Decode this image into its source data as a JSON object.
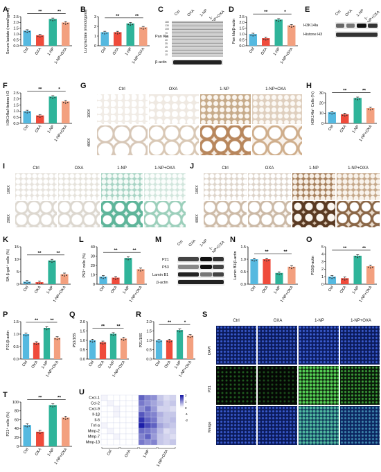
{
  "colors": {
    "ctrl": "#55b9e0",
    "oxa": "#ef4b3b",
    "np": "#2fb49a",
    "npoxa": "#f3a07f",
    "hm_low": "#ffffff",
    "hm_high": "#1c1ea8"
  },
  "groups": [
    "Ctrl",
    "OXA",
    "1-NP",
    "1-NP+OXA"
  ],
  "labels": {
    "A": "A",
    "B": "B",
    "C": "C",
    "D": "D",
    "E": "E",
    "F": "F",
    "G": "G",
    "H": "H",
    "I": "I",
    "J": "J",
    "K": "K",
    "L": "L",
    "M": "M",
    "N": "N",
    "O": "O",
    "P": "P",
    "Q": "Q",
    "R": "R",
    "S": "S",
    "T": "T",
    "U": "U"
  },
  "sig": {
    "ss": "**",
    "s": "*"
  },
  "C": {
    "pan_kla": "Pan Kla",
    "actin": "β-actin",
    "kda": [
      "180",
      "130",
      "100",
      "70",
      "55",
      "40",
      "35",
      "25",
      "15",
      "10"
    ]
  },
  "E": {
    "h3k14la": "H3K14la",
    "h3": "Histone H3"
  },
  "G": {
    "mag": [
      "100X",
      "400X"
    ]
  },
  "I": {
    "mag": [
      "100X",
      "200X"
    ]
  },
  "J": {
    "mag": [
      "100X",
      "400X"
    ]
  },
  "M": {
    "rows": [
      "P21",
      "P53",
      "Lamin B1",
      "β-actin"
    ]
  },
  "S": {
    "rows": [
      "DAPI",
      "P21",
      "Merge"
    ]
  },
  "U": {
    "genes": [
      "Cxcl-1",
      "Ccl-2",
      "Cxcl-9",
      "Il-1β",
      "Il-6",
      "Tnf-α",
      "Mmp-2",
      "Mmp-7",
      "Mmp-13"
    ],
    "groups": [
      "Ctrl",
      "OXA",
      "1-NP",
      "1-NP+OXA"
    ],
    "scale": [
      "2",
      "1",
      "0",
      "-1",
      "-2"
    ]
  },
  "chart_data": [
    {
      "panel": "A",
      "type": "bar",
      "categories": [
        "Ctrl",
        "OXA",
        "1-NP",
        "1-NP+OXA"
      ],
      "values": [
        1.3,
        0.9,
        2.3,
        2.0
      ],
      "ylabel": "Serum lactate (mmol/gprot)",
      "ylim": [
        0,
        2.5
      ],
      "yticks": [
        "0.0",
        "0.5",
        "1.0",
        "1.5",
        "2.0",
        "2.5"
      ],
      "sig": [
        {
          "a": 0,
          "b": 2,
          "t": "**"
        },
        {
          "a": 2,
          "b": 3,
          "t": "**"
        }
      ]
    },
    {
      "panel": "B",
      "type": "bar",
      "categories": [
        "Ctrl",
        "OXA",
        "1-NP",
        "1-NP+OXA"
      ],
      "values": [
        1.4,
        1.4,
        2.3,
        1.9
      ],
      "ylabel": "Lung lactate (mmol/gprot)",
      "ylim": [
        0,
        3
      ],
      "yticks": [
        "0",
        "1",
        "2",
        "3"
      ],
      "sig": [
        {
          "a": 0,
          "b": 2,
          "t": "**"
        },
        {
          "a": 2,
          "b": 3,
          "t": "**"
        }
      ]
    },
    {
      "panel": "D",
      "type": "bar",
      "categories": [
        "Ctrl",
        "OXA",
        "1-NP",
        "1-NP+OXA"
      ],
      "values": [
        1.0,
        0.65,
        2.25,
        1.75
      ],
      "ylabel": "Pan kla/β-actin",
      "ylim": [
        0,
        2.5
      ],
      "yticks": [
        "0.0",
        "0.5",
        "1.0",
        "1.5",
        "2.0",
        "2.5"
      ],
      "sig": [
        {
          "a": 0,
          "b": 2,
          "t": "**"
        },
        {
          "a": 2,
          "b": 3,
          "t": "*"
        }
      ]
    },
    {
      "panel": "F",
      "type": "bar",
      "categories": [
        "Ctrl",
        "OXA",
        "1-NP",
        "1-NP+OXA"
      ],
      "values": [
        1.0,
        0.65,
        2.2,
        1.8
      ],
      "ylabel": "H3K14la/Histone H3",
      "ylim": [
        0,
        2.5
      ],
      "yticks": [
        "0.0",
        "0.5",
        "1.0",
        "1.5",
        "2.0",
        "2.5"
      ],
      "sig": [
        {
          "a": 0,
          "b": 2,
          "t": "**"
        },
        {
          "a": 2,
          "b": 3,
          "t": "*"
        }
      ]
    },
    {
      "panel": "H",
      "type": "bar",
      "categories": [
        "Ctrl",
        "OXA",
        "1-NP",
        "1-NP+OXA"
      ],
      "values": [
        11,
        9,
        25,
        15
      ],
      "ylabel": "H3K14la⁺ Cells (%)",
      "ylim": [
        0,
        30
      ],
      "yticks": [
        "0",
        "10",
        "20",
        "30"
      ],
      "sig": [
        {
          "a": 0,
          "b": 2,
          "t": "**"
        },
        {
          "a": 2,
          "b": 3,
          "t": "**"
        }
      ]
    },
    {
      "panel": "K",
      "type": "bar",
      "categories": [
        "Ctrl",
        "OXA",
        "1-NP",
        "1-NP+OXA"
      ],
      "values": [
        1.0,
        0.8,
        9.5,
        4.0
      ],
      "ylabel": "SA-β-gal⁺ cells (%)",
      "ylim": [
        0,
        15
      ],
      "yticks": [
        "0",
        "5",
        "10",
        "15"
      ],
      "sig": [
        {
          "a": 0,
          "b": 2,
          "t": "**"
        },
        {
          "a": 2,
          "b": 3,
          "t": "**"
        }
      ]
    },
    {
      "panel": "L",
      "type": "bar",
      "categories": [
        "Ctrl",
        "OXA",
        "1-NP",
        "1-NP+OXA"
      ],
      "values": [
        8,
        7,
        28,
        16
      ],
      "ylabel": "P53⁺ cells (%)",
      "ylim": [
        0,
        40
      ],
      "yticks": [
        "0",
        "10",
        "20",
        "30",
        "40"
      ],
      "sig": [
        {
          "a": 0,
          "b": 2,
          "t": "**"
        },
        {
          "a": 2,
          "b": 3,
          "t": "**"
        }
      ]
    },
    {
      "panel": "N",
      "type": "bar",
      "categories": [
        "Ctrl",
        "OXA",
        "1-NP",
        "1-NP+OXA"
      ],
      "values": [
        1.0,
        1.0,
        0.45,
        0.7
      ],
      "ylabel": "Lamin B1/β-actin",
      "ylim": [
        0,
        1.5
      ],
      "yticks": [
        "0.0",
        "0.5",
        "1.0",
        "1.5"
      ],
      "sig": [
        {
          "a": 0,
          "b": 2,
          "t": "**"
        },
        {
          "a": 2,
          "b": 3,
          "t": "**"
        }
      ]
    },
    {
      "panel": "O",
      "type": "bar",
      "categories": [
        "Ctrl",
        "OXA",
        "1-NP",
        "1-NP+OXA"
      ],
      "values": [
        1.0,
        0.8,
        3.8,
        2.4
      ],
      "ylabel": "P53/β-actin",
      "ylim": [
        0,
        5
      ],
      "yticks": [
        "0",
        "1",
        "2",
        "3",
        "4",
        "5"
      ],
      "sig": [
        {
          "a": 0,
          "b": 2,
          "t": "**"
        },
        {
          "a": 2,
          "b": 3,
          "t": "**"
        }
      ]
    },
    {
      "panel": "P",
      "type": "bar",
      "categories": [
        "Ctrl",
        "OXA",
        "1-NP",
        "1-NP+OXA"
      ],
      "values": [
        1.0,
        0.65,
        1.25,
        0.85
      ],
      "ylabel": "P21/β-actin",
      "ylim": [
        0,
        1.5
      ],
      "yticks": [
        "0.0",
        "0.5",
        "1.0",
        "1.5"
      ],
      "sig": [
        {
          "a": 0,
          "b": 2,
          "t": "**"
        },
        {
          "a": 2,
          "b": 3,
          "t": "**"
        }
      ]
    },
    {
      "panel": "Q",
      "type": "bar",
      "categories": [
        "Ctrl",
        "OXA",
        "1-NP",
        "1-NP+OXA"
      ],
      "values": [
        1.0,
        0.9,
        1.35,
        1.1
      ],
      "ylabel": "P53/18S",
      "ylim": [
        0,
        2
      ],
      "yticks": [
        "0.0",
        "0.5",
        "1.0",
        "1.5",
        "2.0"
      ],
      "sig": [
        {
          "a": 0,
          "b": 2,
          "t": "**"
        },
        {
          "a": 2,
          "b": 3,
          "t": "**"
        }
      ]
    },
    {
      "panel": "R",
      "type": "bar",
      "categories": [
        "Ctrl",
        "OXA",
        "1-NP",
        "1-NP+OXA"
      ],
      "values": [
        1.0,
        1.0,
        1.55,
        1.25
      ],
      "ylabel": "P21/18S",
      "ylim": [
        0,
        2
      ],
      "yticks": [
        "0.0",
        "0.5",
        "1.0",
        "1.5",
        "2.0"
      ],
      "sig": [
        {
          "a": 0,
          "b": 2,
          "t": "**"
        },
        {
          "a": 2,
          "b": 3,
          "t": "*"
        }
      ]
    },
    {
      "panel": "T",
      "type": "bar",
      "categories": [
        "Ctrl",
        "OXA",
        "1-NP",
        "1-NP+OXA"
      ],
      "values": [
        48,
        33,
        93,
        65
      ],
      "ylabel": "P21⁺ cells (%)",
      "ylim": [
        0,
        100
      ],
      "yticks": [
        "0",
        "20",
        "40",
        "60",
        "80",
        "100"
      ],
      "sig": [
        {
          "a": 0,
          "b": 2,
          "t": "**"
        },
        {
          "a": 2,
          "b": 3,
          "t": "**"
        }
      ]
    },
    {
      "panel": "U",
      "type": "heatmap",
      "rows": [
        "Cxcl-1",
        "Ccl-2",
        "Cxcl-9",
        "Il-1β",
        "Il-6",
        "Tnf-α",
        "Mmp-2",
        "Mmp-7",
        "Mmp-13"
      ],
      "columns": 12,
      "values": [
        [
          0.1,
          -0.1,
          0.0,
          -0.2,
          -0.3,
          -0.2,
          1.4,
          1.1,
          1.0,
          0.5,
          0.3,
          0.4
        ],
        [
          0.0,
          0.1,
          -0.1,
          -0.2,
          -0.2,
          -0.3,
          1.2,
          1.0,
          0.8,
          0.6,
          0.4,
          0.5
        ],
        [
          0.0,
          -0.1,
          0.1,
          -0.3,
          -0.2,
          -0.2,
          1.0,
          1.3,
          0.9,
          0.4,
          0.4,
          0.3
        ],
        [
          -0.1,
          0.0,
          0.1,
          -0.2,
          -0.3,
          -0.1,
          1.5,
          1.2,
          1.1,
          0.7,
          0.5,
          0.5
        ],
        [
          0.0,
          0.0,
          -0.1,
          -0.2,
          -0.1,
          -0.3,
          1.8,
          1.4,
          1.2,
          0.6,
          0.5,
          0.6
        ],
        [
          0.1,
          -0.1,
          0.0,
          -0.2,
          -0.2,
          -0.2,
          2.0,
          1.6,
          1.4,
          0.8,
          0.6,
          0.5
        ],
        [
          0.0,
          0.1,
          0.0,
          -0.3,
          -0.2,
          -0.2,
          1.3,
          1.2,
          1.0,
          0.6,
          0.3,
          0.4
        ],
        [
          -0.1,
          0.0,
          0.1,
          -0.2,
          -0.3,
          -0.2,
          1.1,
          1.4,
          0.9,
          0.5,
          0.4,
          0.3
        ],
        [
          0.0,
          0.0,
          0.0,
          -0.2,
          -0.2,
          -0.3,
          1.2,
          1.0,
          1.1,
          0.5,
          0.4,
          0.5
        ]
      ],
      "range": [
        -2,
        2
      ]
    }
  ]
}
